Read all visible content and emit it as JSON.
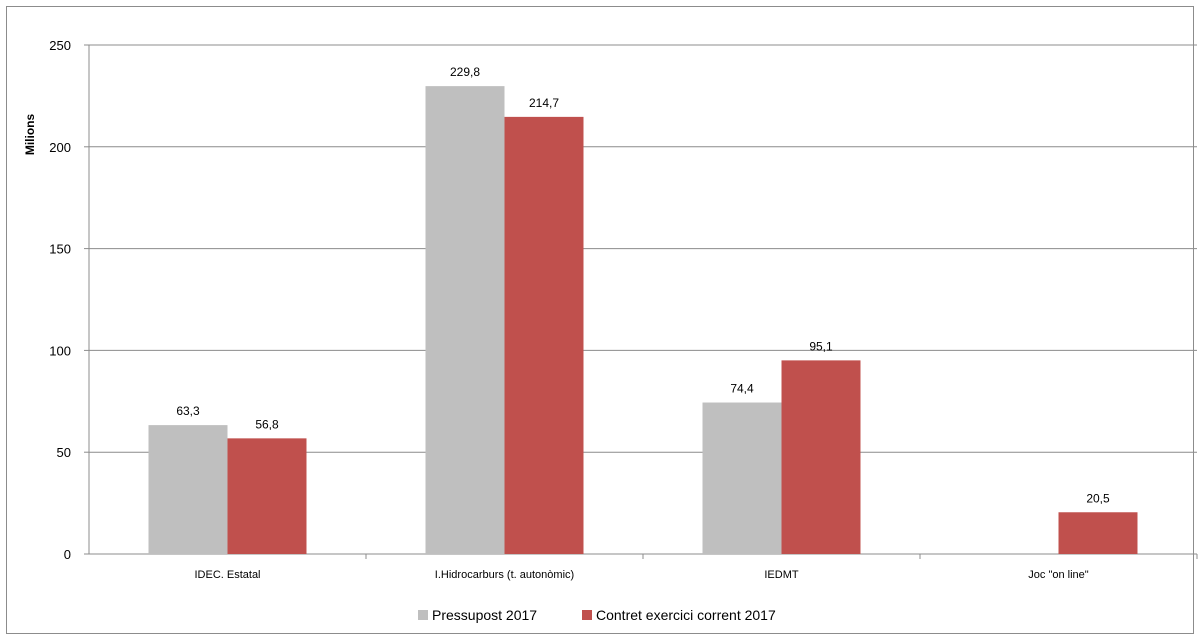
{
  "chart_data": {
    "type": "bar",
    "ylabel": "Milions",
    "xlabel": "",
    "ylim": [
      0,
      250
    ],
    "yticks": [
      0,
      50,
      100,
      150,
      200,
      250
    ],
    "grid": true,
    "legend_position": "bottom",
    "categories": [
      "IDEC. Estatal",
      "I.Hidrocarburs (t. autonòmic)",
      "IEDMT",
      "Joc \"on line\""
    ],
    "series": [
      {
        "name": "Pressupost 2017",
        "color": "#bfbfbf",
        "values": [
          63.3,
          229.8,
          74.4,
          null
        ],
        "labels": [
          "63,3",
          "229,8",
          "74,4",
          null
        ]
      },
      {
        "name": "Contret exercici corrent 2017",
        "color": "#c0504d",
        "values": [
          56.8,
          214.7,
          95.1,
          20.5
        ],
        "labels": [
          "56,8",
          "214,7",
          "95,1",
          "20,5"
        ]
      }
    ]
  }
}
